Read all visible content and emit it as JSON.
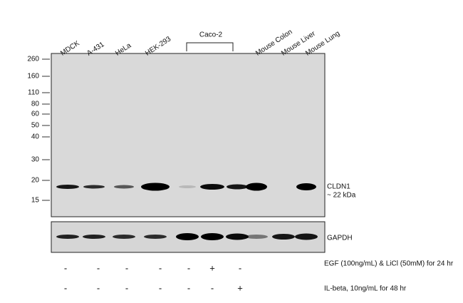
{
  "lane_labels": [
    "MDCK",
    "A-431",
    "HeLa",
    "HEK-293",
    "Mouse Colon",
    "Mouse Liver",
    "Mouse Lung"
  ],
  "group_label": "Caco-2",
  "markers": [
    260,
    160,
    110,
    80,
    60,
    50,
    40,
    30,
    20,
    15
  ],
  "target": {
    "name": "CLDN1",
    "size": "~ 22 kDa"
  },
  "control": {
    "name": "GAPDH"
  },
  "treatments": [
    {
      "label": "EGF (100ng/mL) & LiCl (50mM) for 24 hr",
      "signs": [
        "-",
        "-",
        "-",
        "-",
        "-",
        "+",
        "-"
      ]
    },
    {
      "label": "IL-beta,  10ng/mL for 48 hr",
      "signs": [
        "-",
        "-",
        "-",
        "-",
        "-",
        "-",
        "+"
      ]
    }
  ]
}
